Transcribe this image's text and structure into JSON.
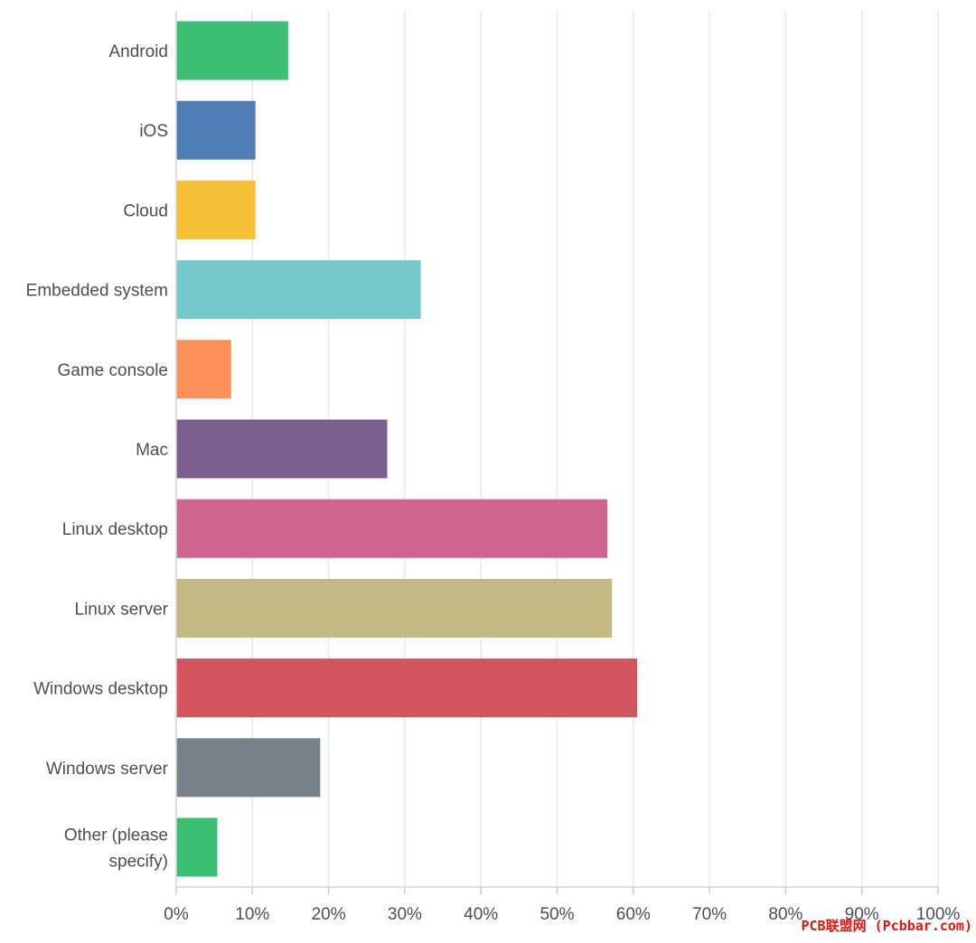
{
  "chart_data": {
    "type": "bar",
    "orientation": "horizontal",
    "categories": [
      "Android",
      "iOS",
      "Cloud",
      "Embedded system",
      "Game console",
      "Mac",
      "Linux desktop",
      "Linux server",
      "Windows desktop",
      "Windows server",
      "Other (please specify)"
    ],
    "category_lines": [
      [
        "Android"
      ],
      [
        "iOS"
      ],
      [
        "Cloud"
      ],
      [
        "Embedded system"
      ],
      [
        "Game console"
      ],
      [
        "Mac"
      ],
      [
        "Linux desktop"
      ],
      [
        "Linux server"
      ],
      [
        "Windows desktop"
      ],
      [
        "Windows server"
      ],
      [
        "Other (please",
        "specify)"
      ]
    ],
    "values": [
      14.7,
      10.4,
      10.4,
      32.1,
      7.2,
      27.7,
      56.6,
      57.2,
      60.5,
      18.9,
      5.4
    ],
    "colors": [
      "#3bbf72",
      "#507cb5",
      "#f6c137",
      "#75c8cc",
      "#fb9158",
      "#7c5f8e",
      "#cf6490",
      "#c5b982",
      "#d4545d",
      "#788087",
      "#3bbf72"
    ],
    "xlim": [
      0,
      100
    ],
    "x_ticks": [
      "0%",
      "10%",
      "20%",
      "30%",
      "40%",
      "50%",
      "60%",
      "70%",
      "80%",
      "90%",
      "100%"
    ],
    "grid": true,
    "title": "",
    "xlabel": "",
    "ylabel": ""
  },
  "watermark": "PCB联盟网 (Pcbbar.com)"
}
